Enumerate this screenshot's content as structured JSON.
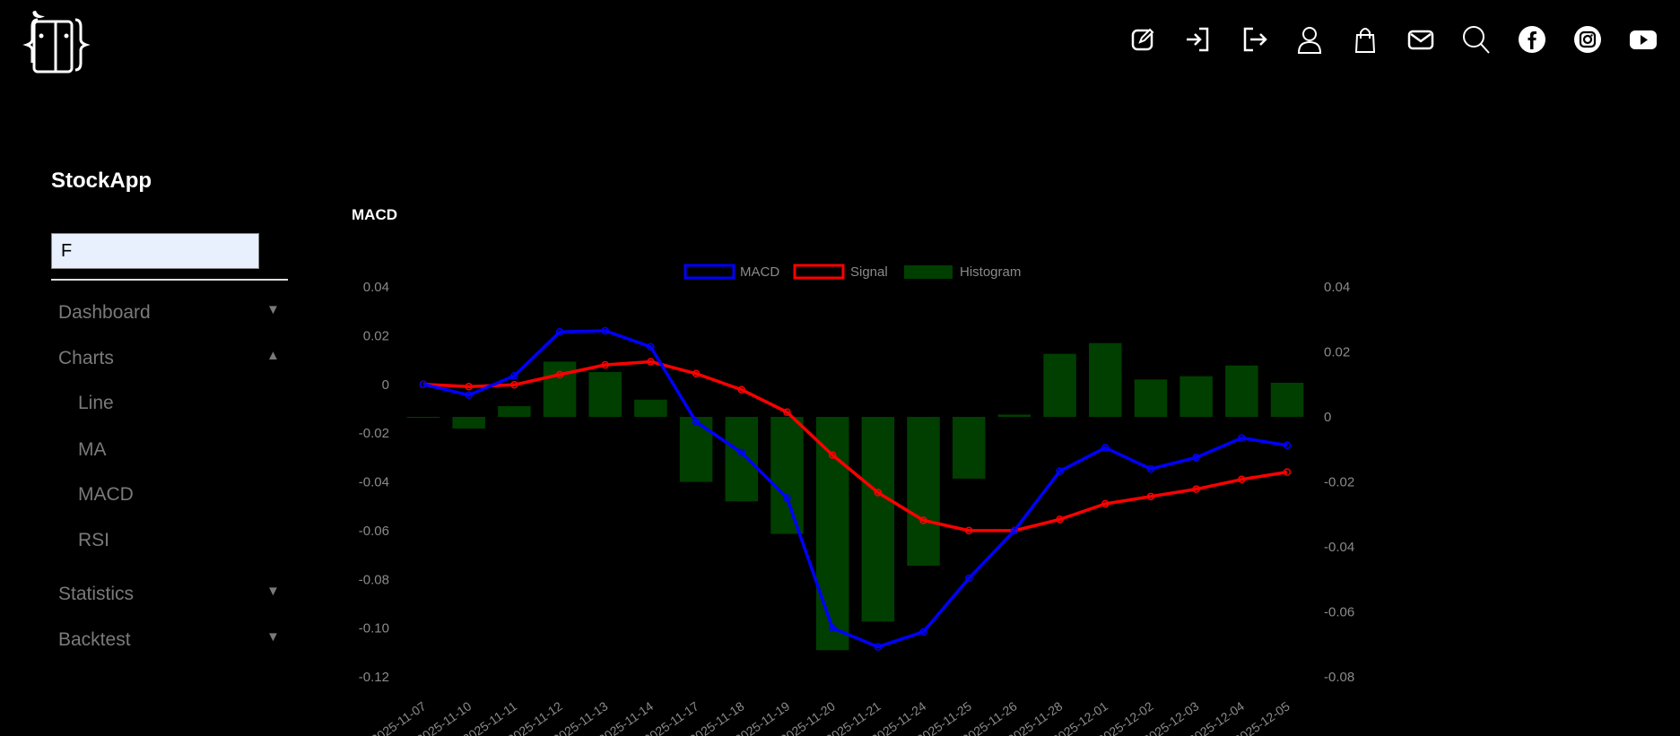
{
  "header": {
    "icons": [
      "edit-icon",
      "login-icon",
      "logout-icon",
      "user-icon",
      "shopping-bag-icon",
      "mail-icon",
      "search-icon",
      "facebook-icon",
      "instagram-icon",
      "youtube-icon"
    ]
  },
  "sidebar": {
    "brand": "StockApp",
    "search_value": "F",
    "items": [
      {
        "label": "Dashboard",
        "arrow": "▼"
      },
      {
        "label": "Charts",
        "arrow": "▲",
        "children": [
          "Line",
          "MA",
          "MACD",
          "RSI"
        ]
      },
      {
        "label": "Statistics",
        "arrow": "▼"
      },
      {
        "label": "Backtest",
        "arrow": "▼"
      }
    ]
  },
  "main": {
    "title": "MACD"
  },
  "colors": {
    "macd": "#0000ff",
    "signal": "#ff0000",
    "histogram": "#003f00",
    "tick": "#8a8a8a"
  },
  "chart_data": {
    "type": "line",
    "title": "MACD",
    "legend_position": "top",
    "grid": false,
    "categories": [
      "2025-11-07",
      "2025-11-10",
      "2025-11-11",
      "2025-11-12",
      "2025-11-13",
      "2025-11-14",
      "2025-11-17",
      "2025-11-18",
      "2025-11-19",
      "2025-11-20",
      "2025-11-21",
      "2025-11-24",
      "2025-11-25",
      "2025-11-26",
      "2025-11-28",
      "2025-12-01",
      "2025-12-02",
      "2025-12-03",
      "2025-12-04",
      "2025-12-05"
    ],
    "y_left": {
      "range": [
        -0.12,
        0.04
      ],
      "ticks": [
        "0.04",
        "0.02",
        "0",
        "-0.02",
        "-0.04",
        "-0.06",
        "-0.08",
        "-0.10",
        "-0.12"
      ]
    },
    "y_right": {
      "range": [
        -0.08,
        0.04
      ],
      "ticks": [
        "0.04",
        "0.02",
        "0",
        "-0.02",
        "-0.04",
        "-0.06",
        "-0.08"
      ]
    },
    "series": [
      {
        "name": "MACD",
        "type": "line",
        "axis": "left",
        "values": [
          0,
          -0.0044,
          0.0035,
          0.0215,
          0.022,
          0.0154,
          -0.0154,
          -0.028,
          -0.0466,
          -0.1,
          -0.1077,
          -0.1015,
          -0.0796,
          -0.06,
          -0.0356,
          -0.026,
          -0.0347,
          -0.03,
          -0.022,
          -0.025
        ]
      },
      {
        "name": "Signal",
        "type": "line",
        "axis": "left",
        "values": [
          0,
          -0.0009,
          -0.0002,
          0.004,
          0.008,
          0.0093,
          0.0044,
          -0.0022,
          -0.0114,
          -0.029,
          -0.0444,
          -0.0558,
          -0.06,
          -0.06,
          -0.0554,
          -0.049,
          -0.046,
          -0.043,
          -0.039,
          -0.036
        ]
      },
      {
        "name": "Histogram",
        "type": "bar",
        "axis": "right",
        "values": [
          0,
          -0.0036,
          0.0033,
          0.017,
          0.0138,
          0.0053,
          -0.02,
          -0.026,
          -0.036,
          -0.0718,
          -0.063,
          -0.0458,
          -0.019,
          0.0007,
          0.0194,
          0.0227,
          0.0115,
          0.0125,
          0.0158,
          0.0105
        ]
      }
    ]
  }
}
